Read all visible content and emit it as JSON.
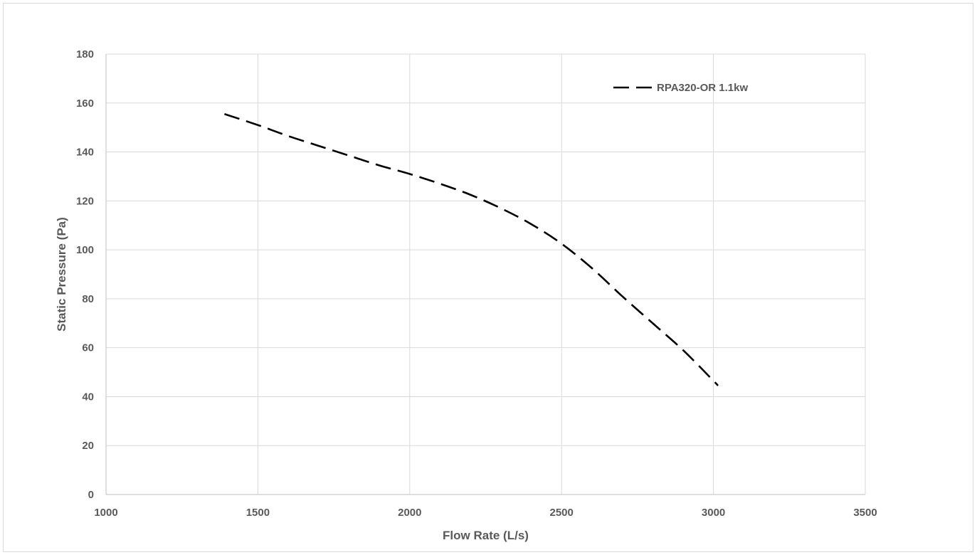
{
  "chart_data": {
    "type": "line",
    "title": "",
    "xlabel": "Flow Rate (L/s)",
    "ylabel": "Static Pressure (Pa)",
    "xlim": [
      1000,
      3500
    ],
    "ylim": [
      0,
      180
    ],
    "xticks": [
      1000,
      1500,
      2000,
      2500,
      3000,
      3500
    ],
    "yticks": [
      0,
      20,
      40,
      60,
      80,
      100,
      120,
      140,
      160,
      180
    ],
    "grid": true,
    "legend_position": "top-right",
    "series": [
      {
        "name": "RPA320-OR 1.1kw",
        "line_style": "dashed",
        "color": "#000000",
        "x": [
          1390,
          1500,
          1600,
          1700,
          1800,
          1900,
          2000,
          2100,
          2200,
          2300,
          2400,
          2500,
          2600,
          2700,
          2800,
          2900,
          3000,
          3015
        ],
        "y": [
          155.5,
          151,
          146.5,
          142.5,
          138.5,
          134.5,
          131,
          127,
          122.5,
          117,
          110.5,
          102.5,
          92.5,
          81,
          70,
          59,
          46.5,
          44.5
        ]
      }
    ]
  }
}
